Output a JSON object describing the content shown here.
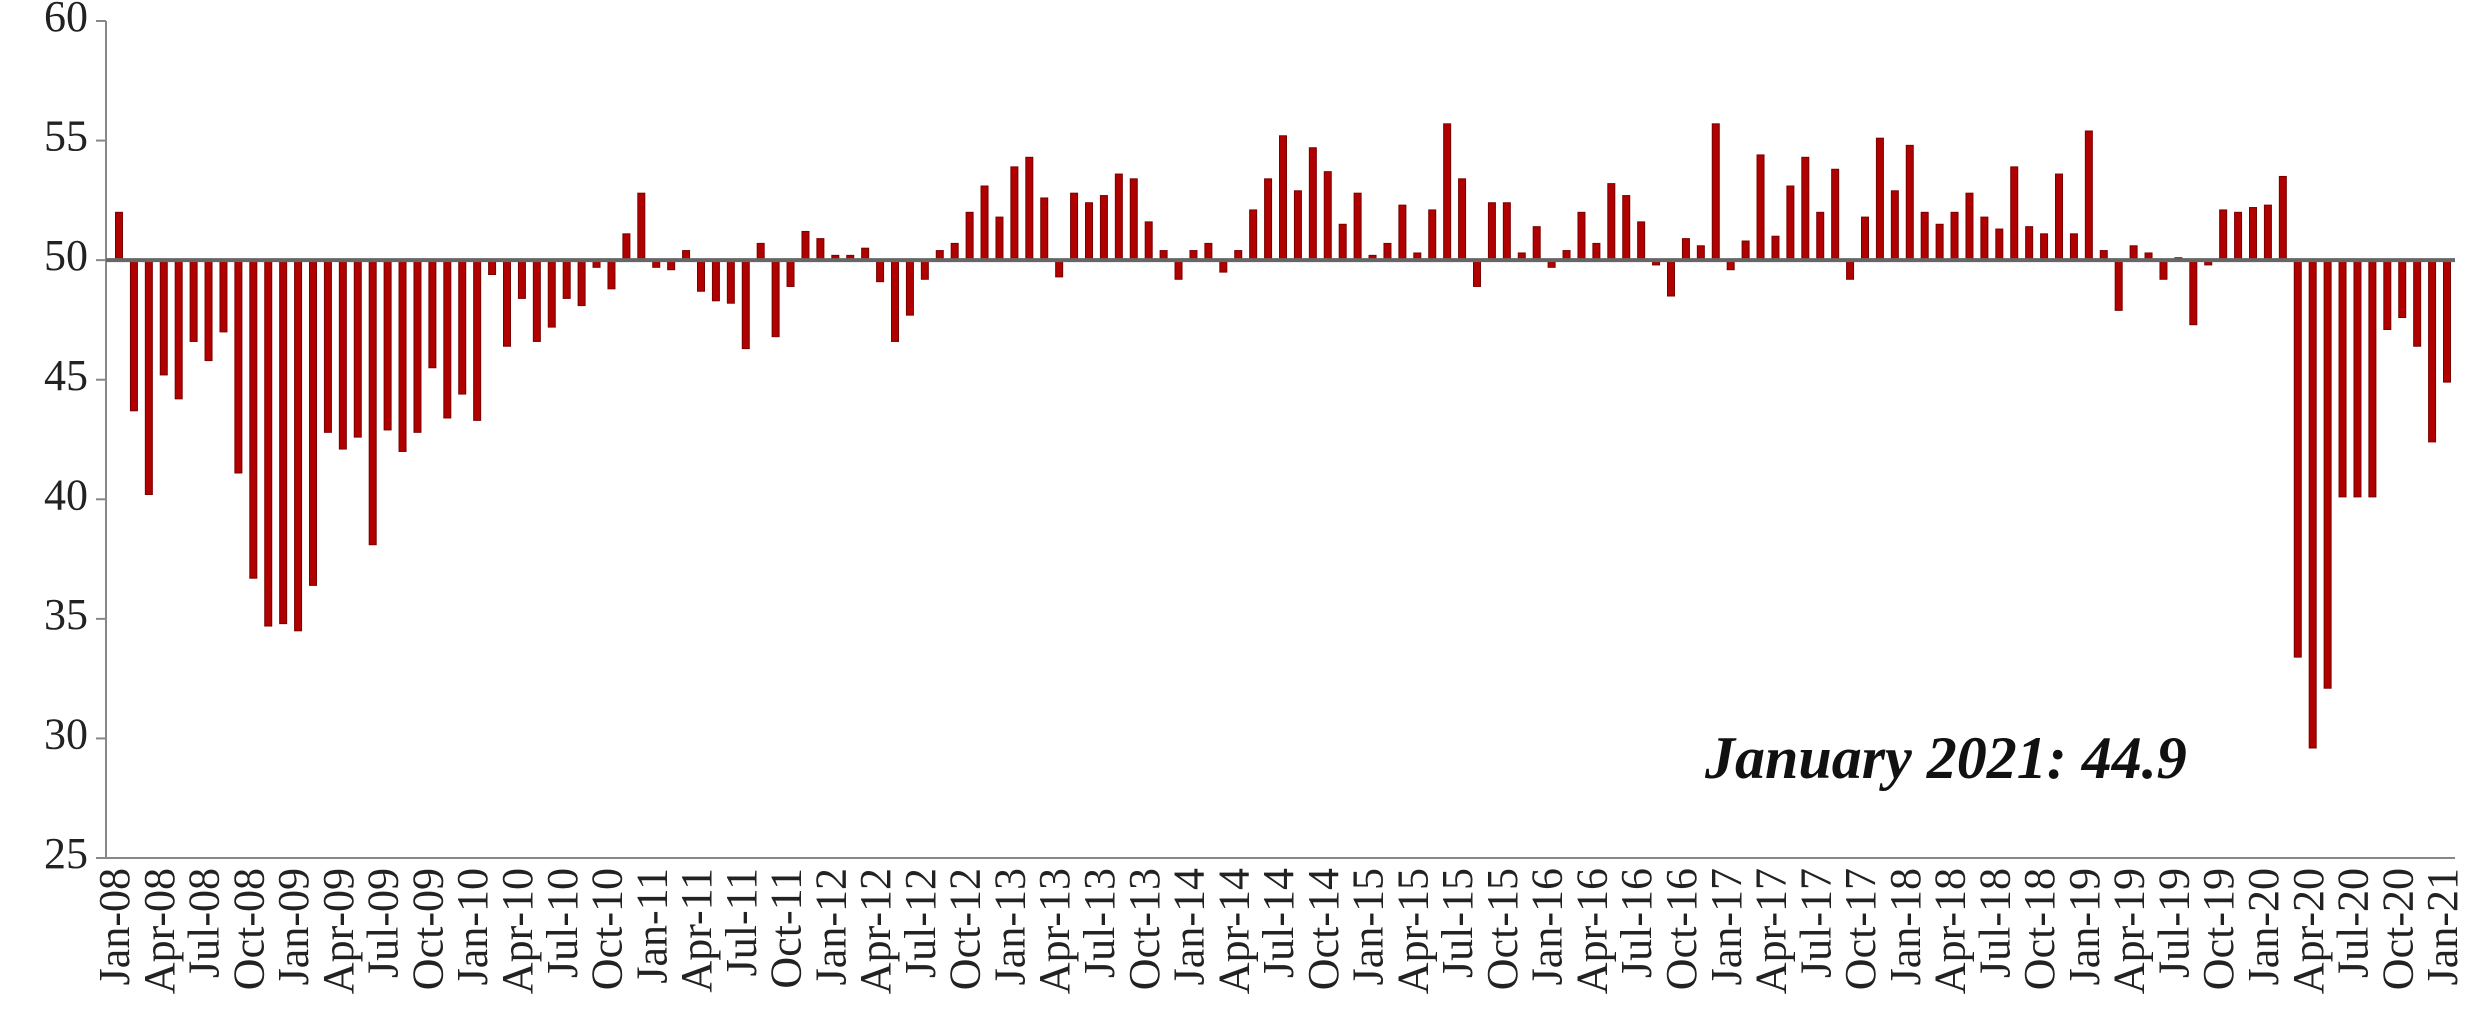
{
  "chart_data": {
    "type": "bar",
    "annotation": "January 2021: 44.9",
    "color": "#b00000",
    "baseline": 50,
    "ylim": [
      25,
      60
    ],
    "yticks": [
      25,
      30,
      35,
      40,
      45,
      50,
      55,
      60
    ],
    "categories": [
      "Jan-08",
      null,
      null,
      "Apr-08",
      null,
      null,
      "Jul-08",
      null,
      null,
      "Oct-08",
      null,
      null,
      "Jan-09",
      null,
      null,
      "Apr-09",
      null,
      null,
      "Jul-09",
      null,
      null,
      "Oct-09",
      null,
      null,
      "Jan-10",
      null,
      null,
      "Apr-10",
      null,
      null,
      "Jul-10",
      null,
      null,
      "Oct-10",
      null,
      null,
      "Jan-11",
      null,
      null,
      "Apr-11",
      null,
      null,
      "Jul-11",
      null,
      null,
      "Oct-11",
      null,
      null,
      "Jan-12",
      null,
      null,
      "Apr-12",
      null,
      null,
      "Jul-12",
      null,
      null,
      "Oct-12",
      null,
      null,
      "Jan-13",
      null,
      null,
      "Apr-13",
      null,
      null,
      "Jul-13",
      null,
      null,
      "Oct-13",
      null,
      null,
      "Jan-14",
      null,
      null,
      "Apr-14",
      null,
      null,
      "Jul-14",
      null,
      null,
      "Oct-14",
      null,
      null,
      "Jan-15",
      null,
      null,
      "Apr-15",
      null,
      null,
      "Jul-15",
      null,
      null,
      "Oct-15",
      null,
      null,
      "Jan-16",
      null,
      null,
      "Apr-16",
      null,
      null,
      "Jul-16",
      null,
      null,
      "Oct-16",
      null,
      null,
      "Jan-17",
      null,
      null,
      "Apr-17",
      null,
      null,
      "Jul-17",
      null,
      null,
      "Oct-17",
      null,
      null,
      "Jan-18",
      null,
      null,
      "Apr-18",
      null,
      null,
      "Jul-18",
      null,
      null,
      "Oct-18",
      null,
      null,
      "Jan-19",
      null,
      null,
      "Apr-19",
      null,
      null,
      "Jul-19",
      null,
      null,
      "Oct-19",
      null,
      null,
      "Jan-20",
      null,
      null,
      "Apr-20",
      null,
      null,
      "Jul-20",
      null,
      null,
      "Oct-20",
      null,
      null,
      "Jan-21"
    ],
    "values": [
      52.0,
      43.7,
      40.2,
      45.2,
      44.2,
      46.6,
      45.8,
      47.0,
      41.1,
      36.7,
      34.7,
      34.8,
      34.5,
      36.4,
      42.8,
      42.1,
      42.6,
      38.1,
      42.9,
      42.0,
      42.8,
      45.5,
      43.4,
      44.4,
      43.3,
      49.4,
      46.4,
      48.4,
      46.6,
      47.2,
      48.4,
      48.1,
      49.7,
      48.8,
      51.1,
      52.8,
      49.7,
      49.6,
      50.4,
      48.7,
      48.3,
      48.2,
      46.3,
      50.7,
      46.8,
      48.9,
      51.2,
      50.9,
      50.2,
      50.2,
      50.5,
      49.1,
      46.6,
      47.7,
      49.2,
      50.4,
      50.7,
      52.0,
      53.1,
      51.8,
      53.9,
      54.3,
      52.6,
      49.3,
      52.8,
      52.4,
      52.7,
      53.6,
      53.4,
      51.6,
      50.4,
      49.2,
      50.4,
      50.7,
      49.5,
      50.4,
      52.1,
      53.4,
      55.2,
      52.9,
      54.7,
      53.7,
      51.5,
      52.8,
      50.2,
      50.7,
      52.3,
      50.3,
      52.1,
      55.7,
      53.4,
      48.9,
      52.4,
      52.4,
      50.3,
      51.4,
      49.7,
      50.4,
      52.0,
      50.7,
      53.2,
      52.7,
      51.6,
      49.8,
      48.5,
      50.9,
      50.6,
      55.7,
      49.6,
      50.8,
      54.4,
      51.0,
      53.1,
      54.3,
      52.0,
      53.8,
      49.2,
      51.8,
      55.1,
      52.9,
      54.8,
      52.0,
      51.5,
      52.0,
      52.8,
      51.8,
      51.3,
      53.9,
      51.4,
      51.1,
      53.6,
      51.1,
      55.4,
      50.4,
      47.9,
      50.6,
      50.3,
      49.2,
      50.1,
      47.3,
      49.8,
      52.1,
      52.0,
      52.2,
      52.3,
      53.5,
      33.4,
      29.6,
      32.1,
      40.1,
      40.1,
      40.1,
      47.1,
      47.6,
      46.4,
      42.4,
      44.9
    ]
  }
}
